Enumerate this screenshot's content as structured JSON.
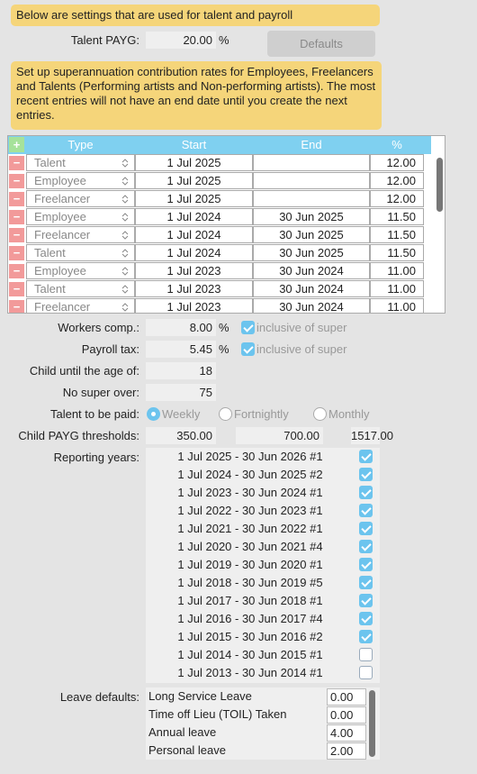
{
  "notes": {
    "payroll": "Below are settings that are used for talent and payroll",
    "super": "Set up superannuation contribution rates for Employees, Freelancers and Talents (Performing artists and Non-performing artists).  The most recent entries will not have an end date until you create the next entries."
  },
  "talent_payg": {
    "label": "Talent PAYG:",
    "value": "20.00",
    "unit": "%"
  },
  "defaults_button": "Defaults",
  "super_table": {
    "add_button": "+",
    "remove_button": "−",
    "columns": [
      "Type",
      "Start",
      "End",
      "%"
    ],
    "rows": [
      {
        "type": "Talent",
        "start": "1 Jul 2025",
        "end": null,
        "percent": "12.00"
      },
      {
        "type": "Employee",
        "start": "1 Jul 2025",
        "end": null,
        "percent": "12.00"
      },
      {
        "type": "Freelancer",
        "start": "1 Jul 2025",
        "end": null,
        "percent": "12.00"
      },
      {
        "type": "Employee",
        "start": "1 Jul 2024",
        "end": "30 Jun 2025",
        "percent": "11.50"
      },
      {
        "type": "Freelancer",
        "start": "1 Jul 2024",
        "end": "30 Jun 2025",
        "percent": "11.50"
      },
      {
        "type": "Talent",
        "start": "1 Jul 2024",
        "end": "30 Jun 2025",
        "percent": "11.50"
      },
      {
        "type": "Employee",
        "start": "1 Jul 2023",
        "end": "30 Jun 2024",
        "percent": "11.00"
      },
      {
        "type": "Talent",
        "start": "1 Jul 2023",
        "end": "30 Jun 2024",
        "percent": "11.00"
      },
      {
        "type": "Freelancer",
        "start": "1 Jul 2023",
        "end": "30 Jun 2024",
        "percent": "11.00"
      }
    ]
  },
  "workers_comp": {
    "label": "Workers comp.:",
    "value": "8.00",
    "unit": "%",
    "option": "inclusive of super",
    "checked": true
  },
  "payroll_tax": {
    "label": "Payroll tax:",
    "value": "5.45",
    "unit": "%",
    "option": "inclusive of super",
    "checked": true
  },
  "child_age": {
    "label": "Child until the age of:",
    "value": "18"
  },
  "no_super_over": {
    "label": "No super over:",
    "value": "75"
  },
  "talent_paid": {
    "label": "Talent to be paid:",
    "options": [
      "Weekly",
      "Fortnightly",
      "Monthly"
    ],
    "selected": 0
  },
  "child_payg": {
    "label": "Child PAYG thresholds:",
    "values": [
      "350.00",
      "700.00",
      "1517.00"
    ]
  },
  "reporting_years": {
    "label": "Reporting years:",
    "items": [
      {
        "label": "1 Jul 2025 - 30 Jun 2026 #1",
        "checked": true
      },
      {
        "label": "1 Jul 2024 - 30 Jun 2025 #2",
        "checked": true
      },
      {
        "label": "1 Jul 2023 - 30 Jun 2024 #1",
        "checked": true
      },
      {
        "label": "1 Jul 2022 - 30 Jun 2023 #1",
        "checked": true
      },
      {
        "label": "1 Jul 2021 - 30 Jun 2022 #1",
        "checked": true
      },
      {
        "label": "1 Jul 2020 - 30 Jun 2021 #4",
        "checked": true
      },
      {
        "label": "1 Jul 2019 - 30 Jun 2020 #1",
        "checked": true
      },
      {
        "label": "1 Jul 2018 - 30 Jun 2019 #5",
        "checked": true
      },
      {
        "label": "1 Jul 2017 - 30 Jun 2018 #1",
        "checked": true
      },
      {
        "label": "1 Jul 2016 - 30 Jun 2017 #4",
        "checked": true
      },
      {
        "label": "1 Jul 2015 - 30 Jun 2016 #2",
        "checked": true
      },
      {
        "label": "1 Jul 2014 - 30 Jun 2015 #1",
        "checked": false
      },
      {
        "label": "1 Jul 2013 - 30 Jun 2014 #1",
        "checked": false
      }
    ]
  },
  "leave_defaults": {
    "label": "Leave defaults:",
    "items": [
      {
        "name": "Long Service Leave",
        "value": "0.00"
      },
      {
        "name": "Time off Lieu (TOIL) Taken",
        "value": "0.00"
      },
      {
        "name": "Annual leave",
        "value": "4.00"
      },
      {
        "name": "Personal leave",
        "value": "2.00"
      }
    ]
  }
}
